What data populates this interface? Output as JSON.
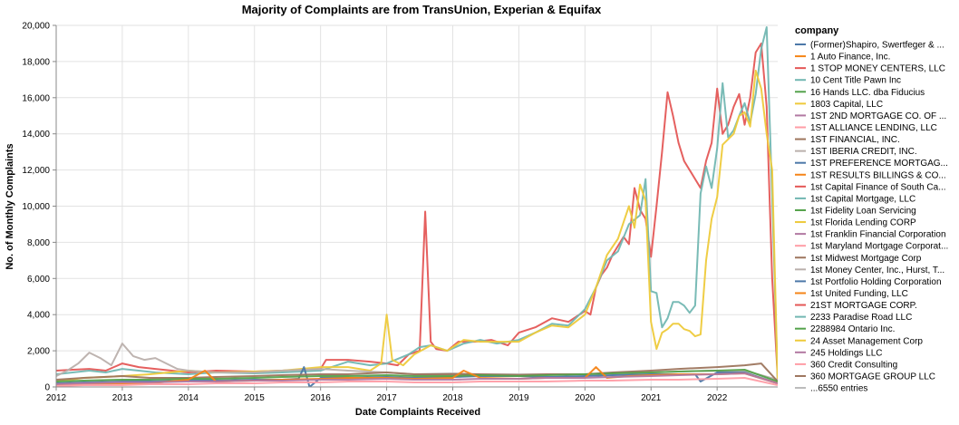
{
  "chart_data": {
    "type": "line",
    "title": "Majority of Complaints are from TransUnion, Experian & Equifax",
    "xlabel": "Date Complaints Received",
    "ylabel": "No. of Monthly Complaints",
    "xlim": [
      "2012-01",
      "2022-12"
    ],
    "ylim": [
      0,
      20000
    ],
    "x_ticks": [
      "2012",
      "2013",
      "2014",
      "2015",
      "2016",
      "2017",
      "2018",
      "2019",
      "2020",
      "2021",
      "2022"
    ],
    "y_ticks": [
      0,
      2000,
      4000,
      6000,
      8000,
      10000,
      12000,
      14000,
      16000,
      18000,
      20000
    ],
    "y_tick_labels": [
      "0",
      "2,000",
      "4,000",
      "6,000",
      "8,000",
      "10,000",
      "12,000",
      "14,000",
      "16,000",
      "18,000",
      "20,000"
    ],
    "grid": true,
    "legend_title": "company",
    "legend_placement": "right",
    "legend": [
      {
        "name": "(Former)Shapiro, Swertfeger & ...",
        "color": "#4c78a8"
      },
      {
        "name": "1 Auto Finance, Inc.",
        "color": "#f58518"
      },
      {
        "name": "1 STOP MONEY CENTERS, LLC",
        "color": "#e45756"
      },
      {
        "name": "10 Cent Title Pawn Inc",
        "color": "#72b7b2"
      },
      {
        "name": "16 Hands LLC. dba Fiducius",
        "color": "#54a24b"
      },
      {
        "name": "1803 Capital, LLC",
        "color": "#eeca3b"
      },
      {
        "name": "1ST 2ND MORTGAGE CO. OF ...",
        "color": "#b279a2"
      },
      {
        "name": "1ST ALLIANCE LENDING, LLC",
        "color": "#ff9da6"
      },
      {
        "name": "1ST FINANCIAL, INC.",
        "color": "#9d755d"
      },
      {
        "name": "1ST IBERIA CREDIT, INC.",
        "color": "#bab0ac"
      },
      {
        "name": "1ST PREFERENCE MORTGAG...",
        "color": "#4c78a8"
      },
      {
        "name": "1ST RESULTS BILLINGS & CO...",
        "color": "#f58518"
      },
      {
        "name": "1st Capital Finance of South Ca...",
        "color": "#e45756"
      },
      {
        "name": "1st Capital Mortgage, LLC",
        "color": "#72b7b2"
      },
      {
        "name": "1st Fidelity Loan Servicing",
        "color": "#54a24b"
      },
      {
        "name": "1st Florida Lending CORP",
        "color": "#eeca3b"
      },
      {
        "name": "1st Franklin Financial Corporation",
        "color": "#b279a2"
      },
      {
        "name": "1st Maryland Mortgage Corporat...",
        "color": "#ff9da6"
      },
      {
        "name": "1st Midwest Mortgage Corp",
        "color": "#9d755d"
      },
      {
        "name": "1st Money Center, Inc., Hurst, T...",
        "color": "#bab0ac"
      },
      {
        "name": "1st Portfolio Holding Corporation",
        "color": "#4c78a8"
      },
      {
        "name": "1st United Funding, LLC",
        "color": "#f58518"
      },
      {
        "name": "21ST MORTGAGE CORP.",
        "color": "#e45756"
      },
      {
        "name": "2233 Paradise Road LLC",
        "color": "#72b7b2"
      },
      {
        "name": "2288984 Ontario Inc.",
        "color": "#54a24b"
      },
      {
        "name": "24 Asset Management Corp",
        "color": "#eeca3b"
      },
      {
        "name": "245 Holdings LLC",
        "color": "#b279a2"
      },
      {
        "name": "360 Credit Consulting",
        "color": "#ff9da6"
      },
      {
        "name": "360 MORTGAGE GROUP LLC",
        "color": "#9d755d"
      }
    ],
    "legend_more": "...6550 entries",
    "series": [
      {
        "name": "",
        "color": "#e45756",
        "x": [
          "2012-01",
          "2012-04",
          "2012-07",
          "2012-10",
          "2013-01",
          "2013-04",
          "2013-07",
          "2013-10",
          "2014-01",
          "2014-06",
          "2015-01",
          "2015-06",
          "2016-01",
          "2016-02",
          "2016-06",
          "2016-10",
          "2017-01",
          "2017-03",
          "2017-05",
          "2017-07",
          "2017-08",
          "2017-09",
          "2017-10",
          "2017-12",
          "2018-02",
          "2018-05",
          "2018-08",
          "2018-11",
          "2019-01",
          "2019-04",
          "2019-07",
          "2019-10",
          "2020-01",
          "2020-02",
          "2020-03",
          "2020-04",
          "2020-05",
          "2020-06",
          "2020-07",
          "2020-08",
          "2020-09",
          "2020-10",
          "2020-11",
          "2020-12",
          "2021-01",
          "2021-02",
          "2021-03",
          "2021-04",
          "2021-05",
          "2021-06",
          "2021-07",
          "2021-08",
          "2021-09",
          "2021-10",
          "2021-11",
          "2021-12",
          "2022-01",
          "2022-02",
          "2022-03",
          "2022-04",
          "2022-05",
          "2022-06",
          "2022-07",
          "2022-08",
          "2022-09",
          "2022-10",
          "2022-11",
          "2022-12"
        ],
        "y": [
          900,
          950,
          1000,
          900,
          1300,
          1100,
          1000,
          900,
          800,
          900,
          850,
          900,
          1000,
          1500,
          1500,
          1400,
          1300,
          1200,
          1800,
          2000,
          9700,
          2500,
          2100,
          2000,
          2500,
          2500,
          2600,
          2300,
          3000,
          3300,
          3800,
          3600,
          4200,
          4000,
          5500,
          6200,
          6600,
          7300,
          7800,
          8300,
          7900,
          11000,
          9800,
          9300,
          7200,
          10000,
          13000,
          16300,
          15000,
          13500,
          12500,
          12000,
          11500,
          11000,
          12500,
          13500,
          16500,
          14000,
          14500,
          15500,
          16200,
          14500,
          16000,
          18500,
          19000,
          15500,
          6000,
          500
        ]
      },
      {
        "name": "",
        "color": "#72b7b2",
        "x": [
          "2012-01",
          "2012-04",
          "2012-07",
          "2012-10",
          "2013-01",
          "2013-04",
          "2013-07",
          "2014-01",
          "2014-06",
          "2015-01",
          "2015-06",
          "2016-01",
          "2016-06",
          "2016-10",
          "2017-01",
          "2017-05",
          "2017-07",
          "2017-09",
          "2017-12",
          "2018-03",
          "2018-06",
          "2018-09",
          "2019-01",
          "2019-04",
          "2019-07",
          "2019-10",
          "2020-01",
          "2020-03",
          "2020-05",
          "2020-07",
          "2020-09",
          "2020-11",
          "2020-12",
          "2021-01",
          "2021-02",
          "2021-03",
          "2021-04",
          "2021-05",
          "2021-06",
          "2021-07",
          "2021-08",
          "2021-09",
          "2021-10",
          "2021-11",
          "2021-12",
          "2022-01",
          "2022-02",
          "2022-03",
          "2022-04",
          "2022-05",
          "2022-06",
          "2022-07",
          "2022-08",
          "2022-09",
          "2022-10",
          "2022-11",
          "2022-12"
        ],
        "y": [
          700,
          800,
          900,
          800,
          1000,
          900,
          800,
          700,
          800,
          750,
          800,
          900,
          1400,
          1200,
          1300,
          1800,
          2200,
          2300,
          2000,
          2400,
          2600,
          2400,
          2600,
          3000,
          3500,
          3400,
          4300,
          5500,
          7000,
          7500,
          9000,
          9500,
          11500,
          5300,
          5200,
          3300,
          3800,
          4700,
          4700,
          4500,
          4100,
          4500,
          10700,
          12200,
          11000,
          13200,
          16800,
          13800,
          14200,
          15000,
          15700,
          14600,
          16200,
          18700,
          19900,
          10500,
          300
        ]
      },
      {
        "name": "",
        "color": "#eeca3b",
        "x": [
          "2012-01",
          "2012-06",
          "2013-01",
          "2013-06",
          "2014-01",
          "2014-06",
          "2015-01",
          "2015-06",
          "2016-01",
          "2016-06",
          "2016-10",
          "2016-12",
          "2017-01",
          "2017-02",
          "2017-04",
          "2017-06",
          "2017-09",
          "2017-12",
          "2018-03",
          "2018-06",
          "2018-09",
          "2019-01",
          "2019-04",
          "2019-07",
          "2019-10",
          "2020-01",
          "2020-03",
          "2020-05",
          "2020-07",
          "2020-09",
          "2020-10",
          "2020-11",
          "2020-12",
          "2021-01",
          "2021-02",
          "2021-03",
          "2021-04",
          "2021-05",
          "2021-06",
          "2021-07",
          "2021-08",
          "2021-09",
          "2021-10",
          "2021-11",
          "2021-12",
          "2022-01",
          "2022-02",
          "2022-03",
          "2022-04",
          "2022-05",
          "2022-06",
          "2022-07",
          "2022-08",
          "2022-09",
          "2022-10",
          "2022-11",
          "2022-12"
        ],
        "y": [
          300,
          500,
          600,
          700,
          900,
          800,
          850,
          900,
          1100,
          1100,
          900,
          1300,
          4000,
          1500,
          1200,
          1800,
          2300,
          2000,
          2600,
          2500,
          2500,
          2500,
          3000,
          3400,
          3300,
          4000,
          5500,
          7300,
          8200,
          10000,
          8800,
          11200,
          10300,
          3600,
          2100,
          3000,
          3200,
          3500,
          3500,
          3200,
          3100,
          2800,
          2900,
          7000,
          9300,
          10500,
          13400,
          13700,
          14000,
          15000,
          15200,
          14400,
          17500,
          16500,
          14000,
          12000,
          200
        ]
      },
      {
        "name": "",
        "color": "#bab0ac",
        "x": [
          "2012-01",
          "2012-03",
          "2012-05",
          "2012-07",
          "2012-09",
          "2012-11",
          "2013-01",
          "2013-03",
          "2013-05",
          "2013-07",
          "2013-09",
          "2013-11",
          "2014-01",
          "2014-06",
          "2015-01",
          "2015-06",
          "2016-01",
          "2016-06",
          "2017-01",
          "2017-06",
          "2018-01",
          "2018-06",
          "2019-01",
          "2019-06",
          "2020-01",
          "2020-06",
          "2021-01",
          "2021-06",
          "2022-01",
          "2022-06",
          "2022-12"
        ],
        "y": [
          600,
          900,
          1300,
          1900,
          1600,
          1200,
          2400,
          1700,
          1500,
          1600,
          1300,
          1000,
          900,
          800,
          800,
          900,
          1000,
          900,
          800,
          700,
          750,
          700,
          700,
          700,
          700,
          750,
          800,
          850,
          900,
          900,
          400
        ]
      },
      {
        "name": "",
        "color": "#4c78a8",
        "x": [
          "2012-01",
          "2012-06",
          "2013-01",
          "2013-06",
          "2014-01",
          "2014-06",
          "2015-01",
          "2015-06",
          "2015-09",
          "2015-10",
          "2015-11",
          "2016-01",
          "2016-06",
          "2017-01",
          "2017-06",
          "2018-01",
          "2018-06",
          "2019-01",
          "2019-06",
          "2020-01",
          "2020-06",
          "2021-01",
          "2021-06",
          "2021-09",
          "2021-10",
          "2022-01",
          "2022-06",
          "2022-12"
        ],
        "y": [
          200,
          250,
          300,
          300,
          350,
          350,
          400,
          400,
          450,
          1100,
          0,
          500,
          500,
          550,
          500,
          550,
          600,
          600,
          550,
          600,
          650,
          700,
          700,
          700,
          300,
          800,
          800,
          200
        ]
      },
      {
        "name": "",
        "color": "#9d755d",
        "x": [
          "2012-01",
          "2012-06",
          "2013-01",
          "2013-06",
          "2014-01",
          "2014-06",
          "2015-01",
          "2015-06",
          "2016-01",
          "2016-06",
          "2017-01",
          "2017-06",
          "2018-01",
          "2018-06",
          "2019-01",
          "2019-06",
          "2020-01",
          "2020-06",
          "2021-01",
          "2021-06",
          "2022-01",
          "2022-06",
          "2022-09",
          "2022-12"
        ],
        "y": [
          400,
          500,
          600,
          500,
          500,
          550,
          600,
          650,
          700,
          700,
          800,
          700,
          700,
          700,
          650,
          700,
          700,
          800,
          900,
          1000,
          1100,
          1200,
          1300,
          300
        ]
      },
      {
        "name": "",
        "color": "#54a24b",
        "x": [
          "2012-01",
          "2012-06",
          "2013-01",
          "2013-06",
          "2014-01",
          "2014-06",
          "2015-01",
          "2015-06",
          "2016-01",
          "2016-06",
          "2017-01",
          "2017-06",
          "2018-01",
          "2018-06",
          "2019-01",
          "2019-06",
          "2020-01",
          "2020-06",
          "2021-01",
          "2021-06",
          "2022-01",
          "2022-06",
          "2022-12"
        ],
        "y": [
          300,
          350,
          400,
          400,
          450,
          450,
          500,
          550,
          600,
          600,
          650,
          600,
          600,
          650,
          600,
          650,
          700,
          750,
          800,
          850,
          900,
          950,
          300
        ]
      },
      {
        "name": "",
        "color": "#f58518",
        "x": [
          "2012-01",
          "2012-06",
          "2013-01",
          "2013-06",
          "2014-01",
          "2014-04",
          "2014-06",
          "2015-01",
          "2015-06",
          "2016-01",
          "2016-06",
          "2017-01",
          "2017-06",
          "2018-01",
          "2018-03",
          "2018-06",
          "2019-01",
          "2019-06",
          "2020-01",
          "2020-03",
          "2020-05",
          "2020-09",
          "2021-01",
          "2021-06",
          "2022-01",
          "2022-06",
          "2022-12"
        ],
        "y": [
          100,
          150,
          200,
          200,
          400,
          900,
          300,
          350,
          400,
          450,
          500,
          500,
          450,
          500,
          900,
          500,
          450,
          500,
          500,
          1100,
          500,
          600,
          650,
          700,
          700,
          750,
          200
        ]
      },
      {
        "name": "",
        "color": "#b279a2",
        "x": [
          "2012-01",
          "2012-06",
          "2013-01",
          "2013-06",
          "2014-01",
          "2014-06",
          "2015-01",
          "2015-06",
          "2016-01",
          "2016-06",
          "2017-01",
          "2017-06",
          "2018-01",
          "2018-06",
          "2019-01",
          "2019-06",
          "2020-01",
          "2020-06",
          "2021-01",
          "2021-06",
          "2022-01",
          "2022-06",
          "2022-12"
        ],
        "y": [
          150,
          200,
          250,
          250,
          300,
          300,
          350,
          350,
          400,
          400,
          450,
          400,
          400,
          450,
          450,
          500,
          500,
          550,
          600,
          650,
          700,
          750,
          200
        ]
      },
      {
        "name": "",
        "color": "#ff9da6",
        "x": [
          "2012-01",
          "2012-06",
          "2013-01",
          "2013-06",
          "2014-01",
          "2014-06",
          "2015-01",
          "2015-06",
          "2016-01",
          "2016-06",
          "2017-01",
          "2017-06",
          "2018-01",
          "2018-06",
          "2019-01",
          "2019-06",
          "2020-01",
          "2020-06",
          "2021-01",
          "2021-06",
          "2022-01",
          "2022-06",
          "2022-12"
        ],
        "y": [
          50,
          100,
          100,
          150,
          150,
          200,
          200,
          250,
          250,
          300,
          300,
          250,
          250,
          300,
          300,
          300,
          350,
          350,
          400,
          400,
          450,
          500,
          100
        ]
      }
    ]
  }
}
